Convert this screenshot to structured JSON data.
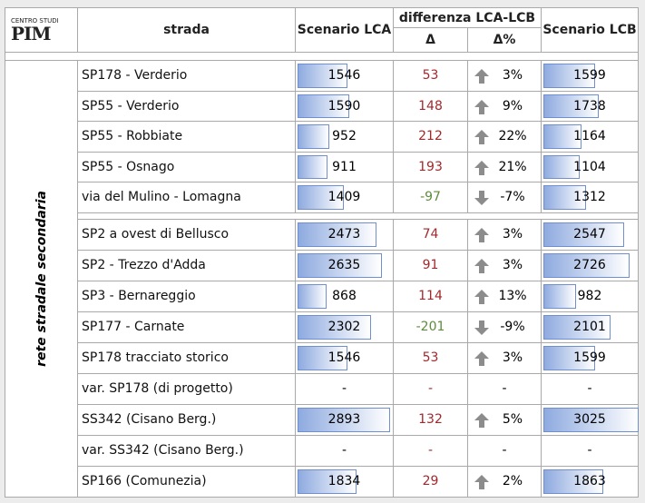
{
  "header": {
    "logo": {
      "top": "CENTRO STUDI",
      "mark": "PIM"
    },
    "strada": "strada",
    "lca": "Scenario LCA",
    "diff": "differenza LCA-LCB",
    "delta": "Δ",
    "delta_pct": "Δ%",
    "lcb": "Scenario LCB"
  },
  "group_label": "rete stradale secondaria",
  "groups": [
    {
      "rows": [
        {
          "strada": "SP178 - Verderio",
          "lca": 1546,
          "delta": 53,
          "delta_pct": "3%",
          "lcb": 1599
        },
        {
          "strada": "SP55 - Verderio",
          "lca": 1590,
          "delta": 148,
          "delta_pct": "9%",
          "lcb": 1738
        },
        {
          "strada": "SP55 - Robbiate",
          "lca": 952,
          "delta": 212,
          "delta_pct": "22%",
          "lcb": 1164
        },
        {
          "strada": "SP55 - Osnago",
          "lca": 911,
          "delta": 193,
          "delta_pct": "21%",
          "lcb": 1104
        },
        {
          "strada": "via del Mulino - Lomagna",
          "lca": 1409,
          "delta": -97,
          "delta_pct": "-7%",
          "lcb": 1312
        }
      ]
    },
    {
      "rows": [
        {
          "strada": "SP2 a ovest di Bellusco",
          "lca": 2473,
          "delta": 74,
          "delta_pct": "3%",
          "lcb": 2547
        },
        {
          "strada": "SP2 - Trezzo d'Adda",
          "lca": 2635,
          "delta": 91,
          "delta_pct": "3%",
          "lcb": 2726
        },
        {
          "strada": "SP3 - Bernareggio",
          "lca": 868,
          "delta": 114,
          "delta_pct": "13%",
          "lcb": 982
        },
        {
          "strada": "SP177 - Carnate",
          "lca": 2302,
          "delta": -201,
          "delta_pct": "-9%",
          "lcb": 2101
        },
        {
          "strada": "SP178 tracciato storico",
          "lca": 1546,
          "delta": 53,
          "delta_pct": "3%",
          "lcb": 1599
        },
        {
          "strada": "var. SP178 (di progetto)",
          "lca": "-",
          "delta": "-",
          "delta_pct": "-",
          "lcb": "-"
        },
        {
          "strada": "SS342 (Cisano Berg.)",
          "lca": 2893,
          "delta": 132,
          "delta_pct": "5%",
          "lcb": 3025
        },
        {
          "strada": "var. SS342 (Cisano Berg.)",
          "lca": "-",
          "delta": "-",
          "delta_pct": "-",
          "lcb": "-"
        },
        {
          "strada": "SP166 (Comunezia)",
          "lca": 1834,
          "delta": 29,
          "delta_pct": "2%",
          "lcb": 1863
        }
      ]
    }
  ]
}
